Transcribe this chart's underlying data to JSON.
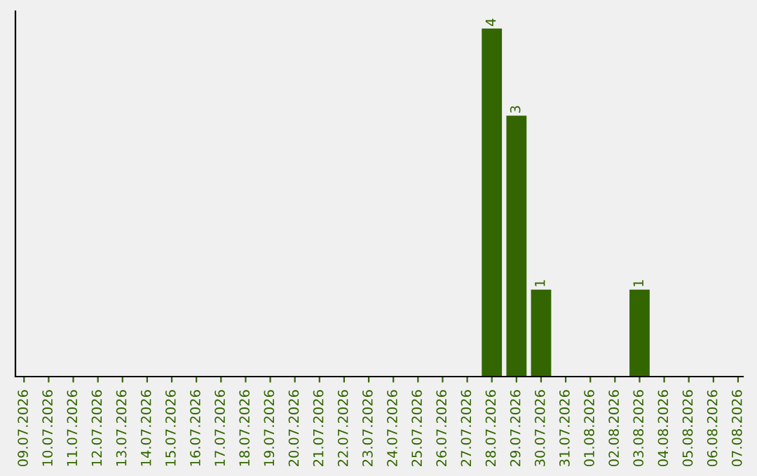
{
  "chart_data": {
    "type": "bar",
    "categories": [
      "09.07.2026",
      "10.07.2026",
      "11.07.2026",
      "12.07.2026",
      "13.07.2026",
      "14.07.2026",
      "15.07.2026",
      "16.07.2026",
      "17.07.2026",
      "18.07.2026",
      "19.07.2026",
      "20.07.2026",
      "21.07.2026",
      "22.07.2026",
      "23.07.2026",
      "24.07.2026",
      "25.07.2026",
      "26.07.2026",
      "27.07.2026",
      "28.07.2026",
      "29.07.2026",
      "30.07.2026",
      "31.07.2026",
      "01.08.2026",
      "02.08.2026",
      "03.08.2026",
      "04.08.2026",
      "05.08.2026",
      "06.08.2026",
      "07.08.2026"
    ],
    "values": [
      null,
      null,
      null,
      null,
      null,
      null,
      null,
      null,
      null,
      null,
      null,
      null,
      null,
      null,
      null,
      null,
      null,
      null,
      null,
      4,
      3,
      1,
      null,
      null,
      null,
      1,
      null,
      null,
      null,
      null
    ],
    "value_labels": [
      null,
      null,
      null,
      null,
      null,
      null,
      null,
      null,
      null,
      null,
      null,
      null,
      null,
      null,
      null,
      null,
      null,
      null,
      null,
      "4",
      "3",
      "1",
      null,
      null,
      null,
      "1",
      null,
      null,
      null,
      null
    ],
    "color": "#336600",
    "ylim": [
      0,
      4.2
    ],
    "tick_labels": "x",
    "grid": false
  }
}
